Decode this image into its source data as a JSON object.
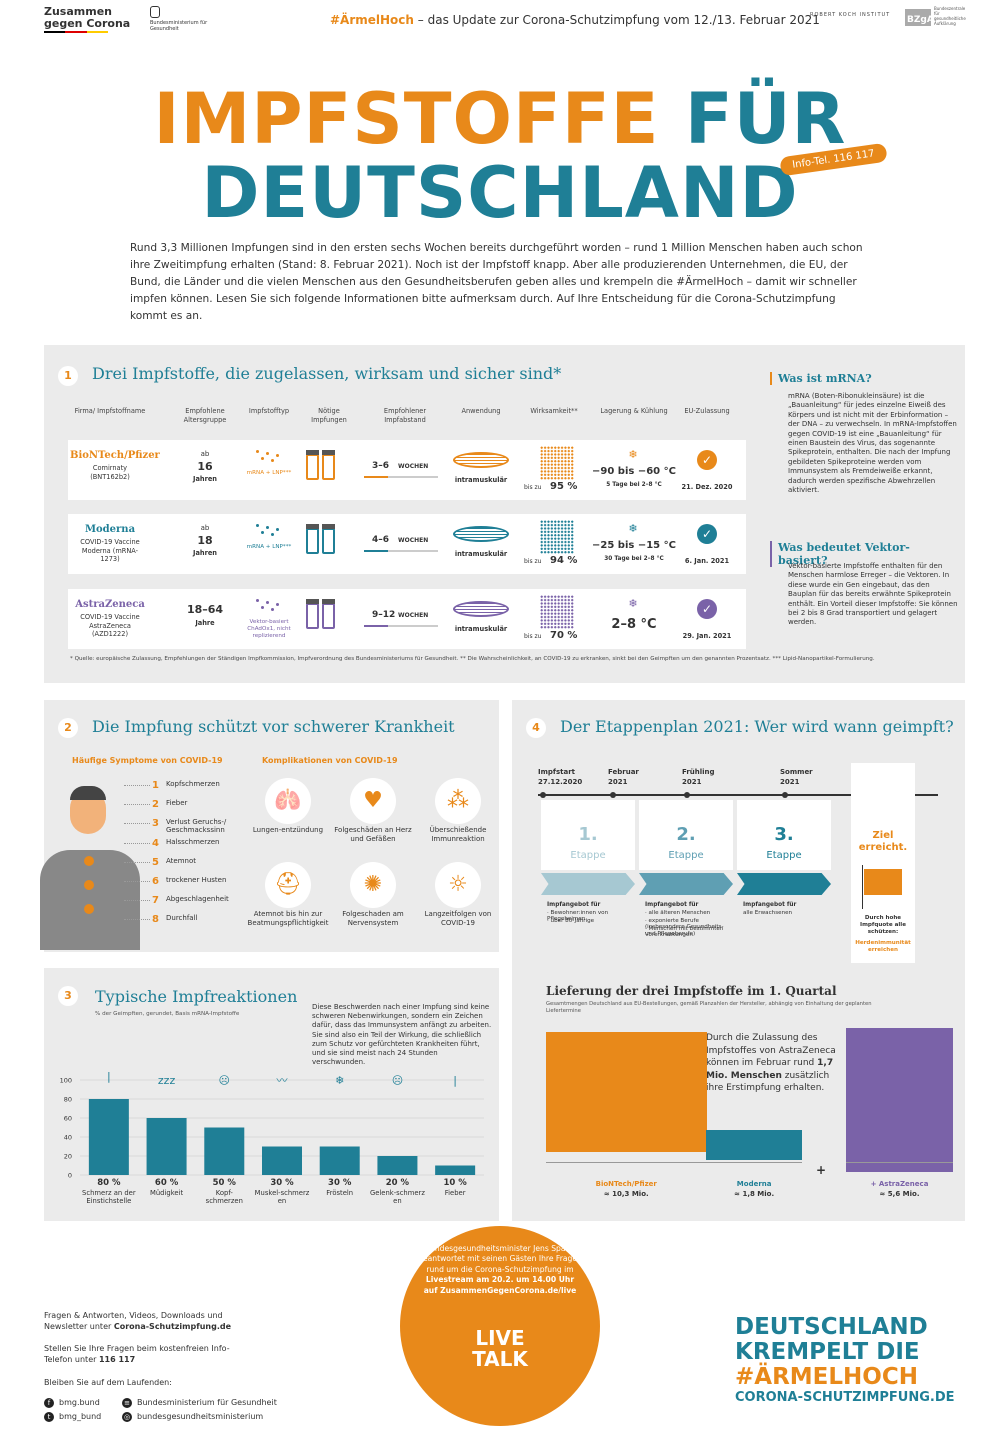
{
  "header": {
    "logo_left_line1": "Zusammen",
    "logo_left_line2": "gegen Corona",
    "ministry": "Bundesministerium für Gesundheit",
    "tagline_hashtag": "#ÄrmelHoch",
    "tagline_rest": " – das Update zur Corona-Schutzimpfung vom 12./13. Februar 2021",
    "rki": "ROBERT KOCH INSTITUT",
    "bzga": "BZgA",
    "bzga_text": "Bundeszentrale für gesundheitliche Aufklärung"
  },
  "title": {
    "line1_orange": "IMPFSTOFFE",
    "line1_teal": " FÜR",
    "line2": "DEUTSCHLAND",
    "badge": "Info-Tel. 116 117"
  },
  "intro": "Rund 3,3 Millionen Impfungen sind in den ersten sechs Wochen bereits durchgeführt worden – rund 1 Million Menschen haben auch schon ihre Zweitimpfung erhalten (Stand: 8. Februar 2021). Noch ist der Impfstoff knapp. Aber alle produzierenden Unternehmen, die EU, der Bund, die Länder und die vielen Menschen aus den Gesundheitsberufen geben alles und krempeln die #ÄrmelHoch – damit wir schneller impfen können. Lesen Sie sich folgende Informationen bitte aufmerksam durch. Auf Ihre Entscheidung für die Corona-Schutzimpfung kommt es an.",
  "section1": {
    "number": "1",
    "title": "Drei Impfstoffe, die zugelassen, wirksam und sicher sind*",
    "columns": [
      "Firma/ Impfstoffname",
      "Empfohlene Altersgruppe",
      "Impfstofftyp",
      "Nötige Impfungen",
      "Empfohlener Impfabstand",
      "Anwendung",
      "Wirksamkeit**",
      "Lagerung & Kühlung",
      "EU-Zulassung"
    ],
    "vaccines": [
      {
        "company": "BioNTech/Pfizer",
        "name": "Comirnaty (BNT162b2)",
        "age_prefix": "ab",
        "age": "16",
        "age_suffix": "Jahren",
        "type": "mRNA + LNP***",
        "interval": "3–6",
        "interval_unit": "WOCHEN",
        "application": "intramuskulär",
        "efficacy_prefix": "bis zu",
        "efficacy": "95 %",
        "storage": "−90 bis −60 °C",
        "storage_note": "5 Tage bei 2–8 °C",
        "approval": "21. Dez. 2020",
        "color": "#e8891a"
      },
      {
        "company": "Moderna",
        "name": "COVID-19 Vaccine Moderna (mRNA-1273)",
        "age_prefix": "ab",
        "age": "18",
        "age_suffix": "Jahren",
        "type": "mRNA + LNP***",
        "interval": "4–6",
        "interval_unit": "WOCHEN",
        "application": "intramuskulär",
        "efficacy_prefix": "bis zu",
        "efficacy": "94 %",
        "storage": "−25 bis −15 °C",
        "storage_note": "30 Tage bei 2–8 °C",
        "approval": "6. Jan. 2021",
        "color": "#1f7f96"
      },
      {
        "company": "AstraZeneca",
        "name": "COVID-19 Vaccine AstraZeneca (AZD1222)",
        "age_prefix": "",
        "age": "18–64",
        "age_suffix": "Jahre",
        "type": "Vektor-basiert ChAdOx1, nicht replizierend",
        "interval": "9–12",
        "interval_unit": "WOCHEN",
        "application": "intramuskulär",
        "efficacy_prefix": "bis zu",
        "efficacy": "70 %",
        "storage": "2–8 °C",
        "storage_note": "",
        "approval": "29. Jan. 2021",
        "color": "#7a62a8"
      }
    ],
    "footnote": "* Quelle: europäische Zulassung, Empfehlungen der Ständigen Impfkommission, Impfverordnung des Bundesministeriums für Gesundheit.   ** Die Wahrscheinlichkeit, an COVID-19 zu erkranken, sinkt bei den Geimpften um den genannten Prozentsatz.   *** Lipid-Nanopartikel-Formulierung.",
    "mrna_title": "Was ist mRNA?",
    "mrna_text": "mRNA (Boten-Ribonukleinsäure) ist die „Bauanleitung“ für jedes einzelne Eiweiß des Körpers und ist nicht mit der Erbinformation – der DNA – zu verwechseln. In mRNA-Impfstoffen gegen COVID-19 ist eine „Bauanleitung“ für einen Baustein des Virus, das sogenannte Spikeprotein, enthalten. Die nach der Impfung gebildeten Spikeproteine werden vom Immunsystem als Fremdeiweiße erkannt, dadurch werden spezifische Abwehrzellen aktiviert.",
    "vector_title": "Was bedeutet Vektor-basiert?",
    "vector_text": "Vektor-basierte Impfstoffe enthalten für den Menschen harmlose Erreger – die Vektoren. In diese wurde ein Gen eingebaut, das den Bauplan für das bereits erwähnte Spikeprotein enthält. Ein Vorteil dieser Impfstoffe: Sie können bei 2 bis 8 Grad transportiert und gelagert werden."
  },
  "section2": {
    "number": "2",
    "title": "Die Impfung schützt vor schwerer Krankheit",
    "symptoms_title": "Häufige Symptome von COVID-19",
    "symptoms": [
      "Kopfschmerzen",
      "Fieber",
      "Verlust Geruchs-/ Geschmackssinn",
      "Halsschmerzen",
      "Atemnot",
      "trockener Husten",
      "Abgeschlagenheit",
      "Durchfall"
    ],
    "complications_title": "Komplikationen von COVID-19",
    "complications": [
      "Lungen-entzündung",
      "Folgeschäden an Herz und Gefäßen",
      "Überschießende Immunreaktion",
      "Atemnot bis hin zur Beatmungspflichtigkeit",
      "Folgeschaden am Nervensystem",
      "Langzeitfolgen von COVID-19"
    ]
  },
  "section3": {
    "number": "3",
    "title": "Typische Impfreaktionen",
    "subtitle": "% der Geimpften, gerundet, Basis mRNA-Impfstoffe",
    "note": "Diese Beschwerden nach einer Impfung sind keine schweren Nebenwirkungen, sondern ein Zeichen dafür, dass das Immunsystem anfängt zu arbeiten. Sie sind also ein Teil der Wirkung, die schließlich zum Schutz vor gefürchteten Krankheiten führt, und sie sind meist nach 24 Stunden verschwunden."
  },
  "chart_data": {
    "type": "bar",
    "categories": [
      "Schmerz an der Einstichstelle",
      "Müdigkeit",
      "Kopf-schmerzen",
      "Muskel-schmerzen",
      "Frösteln",
      "Gelenk-schmerzen",
      "Fieber"
    ],
    "values": [
      80,
      60,
      50,
      30,
      30,
      20,
      10
    ],
    "value_labels": [
      "80 %",
      "60 %",
      "50 %",
      "30 %",
      "30 %",
      "20 %",
      "10 %"
    ],
    "title": "Typische Impfreaktionen",
    "ylim": [
      0,
      100
    ],
    "yticks": [
      "100",
      "80",
      "60",
      "40",
      "20",
      "0"
    ],
    "grid": true,
    "color": "#1f7f96"
  },
  "section4": {
    "number": "4",
    "title": "Der Etappenplan 2021: Wer wird wann geimpft?",
    "dates": [
      {
        "line1": "Impfstart",
        "line2": "27.12.2020"
      },
      {
        "line1": "Februar",
        "line2": "2021"
      },
      {
        "line1": "Frühling",
        "line2": "2021"
      },
      {
        "line1": "Sommer",
        "line2": "2021"
      }
    ],
    "phases": [
      {
        "num": "1.",
        "label": "Etappe",
        "text_title": "Impfangebot für",
        "items": [
          "· Bewohner:innen von Pflegeheimen",
          "· über 80-Jährige"
        ]
      },
      {
        "num": "2.",
        "label": "Etappe",
        "text_title": "Impfangebot für",
        "items": [
          "· alle älteren Menschen",
          "· exponierte Berufe (insbesondere Gesundheits- und Pflegeberufe)",
          "· Menschen mit bestimmten Vorerkrankungen"
        ]
      },
      {
        "num": "3.",
        "label": "Etappe",
        "text_title": "Impfangebot für",
        "items": [
          "alle Erwachsenen"
        ]
      }
    ],
    "goal_line1": "Ziel",
    "goal_line2": "erreicht.",
    "goal_text1": "Durch hohe Impfquote alle schützen:",
    "goal_text2": "Herdenimmunität erreichen",
    "delivery_title": "Lieferung der drei Impfstoffe im 1. Quartal",
    "delivery_subtitle": "Gesamtmengen Deutschland aus EU-Bestellungen, gemäß Planzahlen der Hersteller, abhängig von Einhaltung der geplanten Liefertermine",
    "delivery_text_pre": "Durch die Zulassung des Impfstoffes von AstraZeneca können im Februar rund ",
    "delivery_text_bold": "1,7 Mio. Menschen",
    "delivery_text_post": " zusätzlich ihre Erstimpfung erhalten.",
    "deliveries": [
      {
        "name": "BioNTech/Pfizer",
        "amount": "≈ 10,3 Mio.",
        "color": "#e8891a"
      },
      {
        "name": "Moderna",
        "amount": "≈ 1,8 Mio.",
        "color": "#1f7f96"
      },
      {
        "name": "+ AstraZeneca",
        "amount": "≈ 5,6 Mio.",
        "color": "#7a62a8"
      }
    ],
    "plus": "+"
  },
  "footer": {
    "faq_pre": "Fragen & Antworten, Videos, Downloads und Newsletter unter ",
    "faq_link": "Corona-Schutzimpfung.de",
    "phone_pre": "Stellen Sie Ihre Fragen beim kostenfreien Info-Telefon unter ",
    "phone": "116 117",
    "stay": "Bleiben Sie auf dem Laufenden:",
    "social": [
      {
        "icon": "facebook-icon",
        "label": "bmg.bund"
      },
      {
        "icon": "ministry-icon",
        "label": "Bundesministerium für Gesundheit"
      },
      {
        "icon": "twitter-icon",
        "label": "bmg_bund"
      },
      {
        "icon": "instagram-icon",
        "label": "bundesgesundheitsministerium"
      }
    ],
    "live_text_pre": "Bundesgesundheitsminister Jens Spahn beantwortet mit seinen Gästen Ihre Fragen rund um die Corona-Schutzimpfung im ",
    "live_text_bold": "Livestream am 20.2. um 14.00 Uhr auf ZusammenGegenCorona.de/live",
    "live_line1": "LIVE",
    "live_line2": "TALK",
    "slogan1": "DEUTSCHLAND",
    "slogan2": "KREMPELT DIE",
    "slogan3": "#ÄRMELHOCH",
    "slogan_url": "CORONA-SCHUTZIMPFUNG.DE"
  }
}
